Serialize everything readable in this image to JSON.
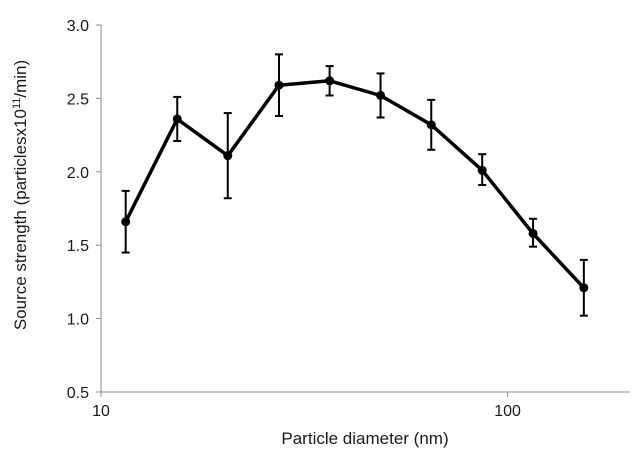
{
  "chart_data": {
    "type": "line",
    "title": "",
    "xlabel": "Particle diameter (nm)",
    "ylabel_parts": {
      "prefix": "Source strength (particlesx10",
      "superscript": "11",
      "suffix": "/min)"
    },
    "x_scale": "log",
    "xlim": [
      10,
      200
    ],
    "ylim": [
      0.5,
      3.0
    ],
    "x_ticks": [
      10,
      100
    ],
    "y_ticks": [
      "0.5",
      "1.0",
      "1.5",
      "2.0",
      "2.5",
      "3.0"
    ],
    "grid": false,
    "legend": "none",
    "series": [
      {
        "color": "#000000",
        "points": [
          {
            "x": 11.5,
            "y": 1.66,
            "err_low": 1.45,
            "err_high": 1.87
          },
          {
            "x": 15.4,
            "y": 2.36,
            "err_low": 2.21,
            "err_high": 2.51
          },
          {
            "x": 20.5,
            "y": 2.11,
            "err_low": 1.82,
            "err_high": 2.4
          },
          {
            "x": 27.4,
            "y": 2.59,
            "err_low": 2.38,
            "err_high": 2.8
          },
          {
            "x": 36.5,
            "y": 2.62,
            "err_low": 2.52,
            "err_high": 2.72
          },
          {
            "x": 48.7,
            "y": 2.52,
            "err_low": 2.37,
            "err_high": 2.67
          },
          {
            "x": 64.9,
            "y": 2.32,
            "err_low": 2.15,
            "err_high": 2.49
          },
          {
            "x": 86.6,
            "y": 2.01,
            "err_low": 1.91,
            "err_high": 2.12
          },
          {
            "x": 115.5,
            "y": 1.58,
            "err_low": 1.49,
            "err_high": 1.68
          },
          {
            "x": 154.0,
            "y": 1.21,
            "err_low": 1.02,
            "err_high": 1.4
          }
        ]
      }
    ]
  }
}
